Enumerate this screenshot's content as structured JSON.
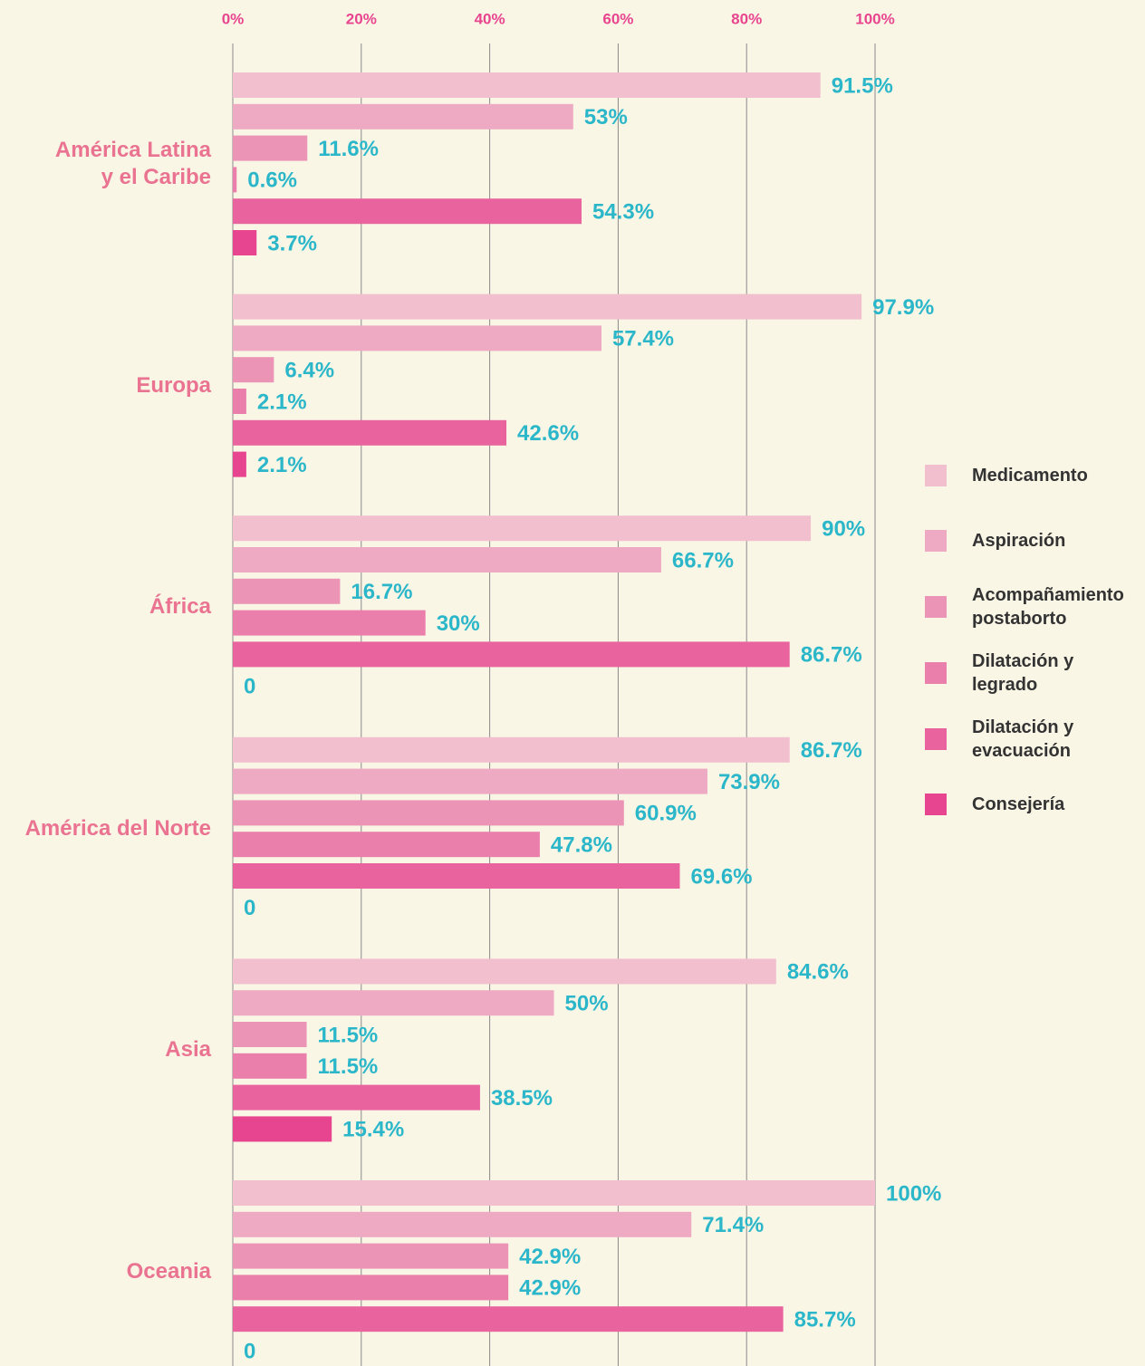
{
  "chart_data": {
    "type": "bar",
    "orientation": "horizontal",
    "categories": [
      "América Latina\ny el Caribe",
      "Europa",
      "África",
      "América del Norte",
      "Asia",
      "Oceania"
    ],
    "series": [
      {
        "name": "Medicamento",
        "color": "#f2bfcf",
        "values": [
          91.5,
          97.9,
          90,
          86.7,
          84.6,
          100
        ],
        "value_labels": [
          "91.5%",
          "97.9%",
          "90%",
          "86.7%",
          "84.6%",
          "100%"
        ]
      },
      {
        "name": "Aspiración",
        "color": "#eea9c3",
        "values": [
          53,
          57.4,
          66.7,
          73.9,
          50,
          71.4
        ],
        "value_labels": [
          "53%",
          "57.4%",
          "66.7%",
          "73.9%",
          "50%",
          "71.4%"
        ]
      },
      {
        "name": "Acompañamiento postaborto",
        "color": "#ec94b6",
        "values": [
          11.6,
          6.4,
          16.7,
          60.9,
          11.5,
          42.9
        ],
        "value_labels": [
          "11.6%",
          "6.4%",
          "16.7%",
          "60.9%",
          "11.5%",
          "42.9%"
        ]
      },
      {
        "name": "Dilatación y legrado",
        "color": "#eb7fac",
        "values": [
          0.6,
          2.1,
          30,
          47.8,
          11.5,
          42.9
        ],
        "value_labels": [
          "0.6%",
          "2.1%",
          "30%",
          "47.8%",
          "11.5%",
          "42.9%"
        ]
      },
      {
        "name": "Dilatación y evacuación",
        "color": "#e9649e",
        "values": [
          54.3,
          42.6,
          86.7,
          69.6,
          38.5,
          85.7
        ],
        "value_labels": [
          "54.3%",
          "42.6%",
          "86.7%",
          "69.6%",
          "38.5%",
          "85.7%"
        ]
      },
      {
        "name": "Consejería",
        "color": "#e84590",
        "values": [
          3.7,
          2.1,
          0,
          0,
          15.4,
          0
        ],
        "value_labels": [
          "3.7%",
          "2.1%",
          "0",
          "0",
          "15.4%",
          "0"
        ]
      }
    ],
    "xlim": [
      0,
      100
    ],
    "xticks": [
      {
        "value": 0,
        "label": "0%"
      },
      {
        "value": 20,
        "label": "20%"
      },
      {
        "value": 40,
        "label": "40%"
      },
      {
        "value": 60,
        "label": "60%"
      },
      {
        "value": 80,
        "label": "80%"
      },
      {
        "value": 100,
        "label": "100%"
      }
    ],
    "grid": true,
    "legend": "right"
  }
}
